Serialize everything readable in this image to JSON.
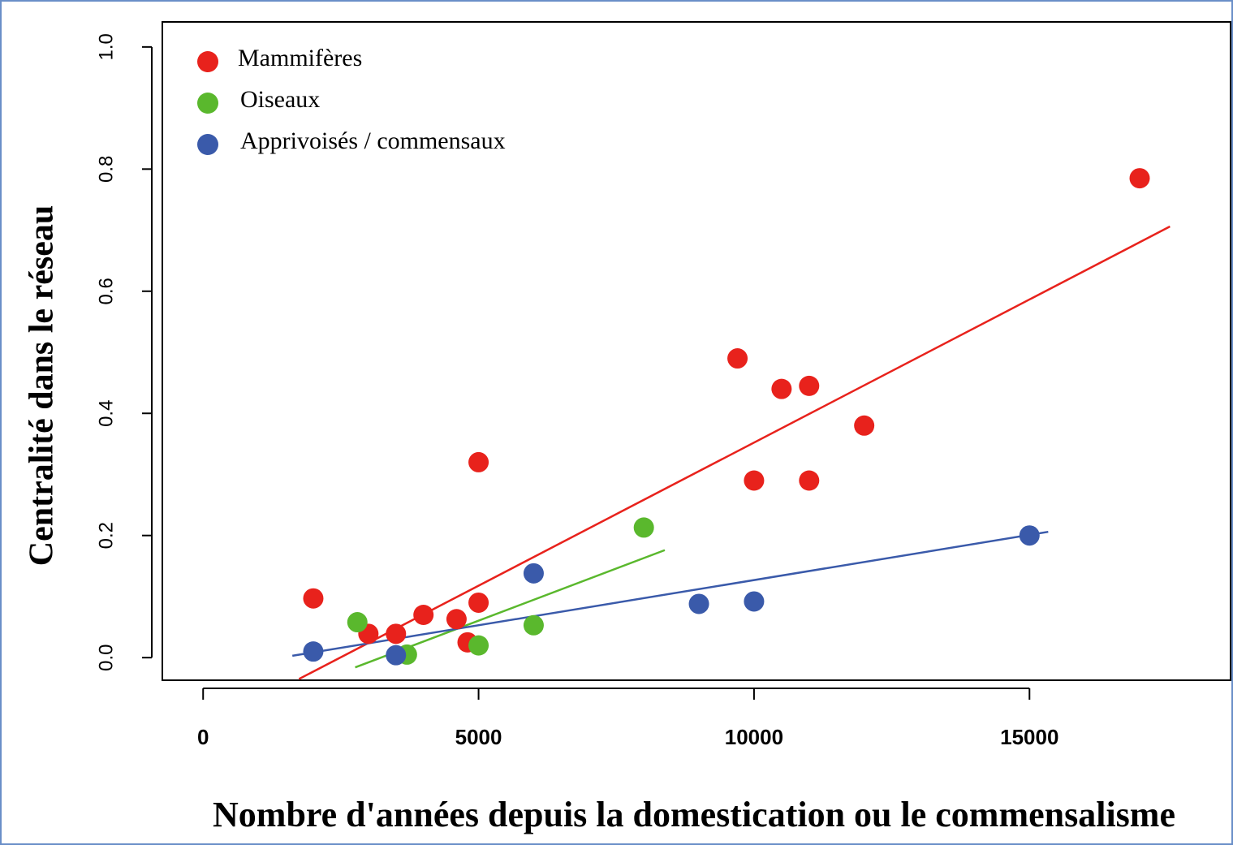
{
  "chart_data": {
    "type": "scatter",
    "x_label": "Nombre d'années depuis la domestication ou le commensalisme",
    "y_label": "Centralité dans le réseau",
    "xlim": [
      -740,
      18650
    ],
    "ylim": [
      -0.037,
      1.041
    ],
    "xticks": [
      0,
      5000,
      10000,
      15000
    ],
    "yticks": [
      {
        "value": 0,
        "label": "0.0"
      },
      0.2,
      0.4,
      0.6,
      0.8,
      {
        "value": 1,
        "label": "1.0"
      }
    ],
    "legend": "top-left",
    "series": [
      {
        "name": "Mammifères",
        "color": "#e8221c",
        "x": [
          2000,
          3000,
          3500,
          4000,
          4600,
          5000,
          4800,
          5000,
          9700,
          10500,
          11000,
          12000,
          10000,
          11000,
          17000
        ],
        "values": [
          0.097,
          0.039,
          0.039,
          0.07,
          0.063,
          0.09,
          0.025,
          0.32,
          0.49,
          0.44,
          0.445,
          0.38,
          0.29,
          0.29,
          0.785
        ],
        "trend": {
          "x": [
            1740,
            17550
          ],
          "values": [
            -0.035,
            0.706
          ]
        }
      },
      {
        "name": "Oiseaux",
        "color": "#5ab82d",
        "x": [
          2800,
          3700,
          5000,
          6000,
          8000
        ],
        "values": [
          0.058,
          0.005,
          0.02,
          0.053,
          0.213
        ],
        "trend": {
          "x": [
            2760,
            8380
          ],
          "values": [
            -0.016,
            0.176
          ]
        }
      },
      {
        "name": "Apprivoisés / commensaux",
        "color": "#3a5aaa",
        "x": [
          2000,
          3500,
          6000,
          9000,
          10000,
          15000
        ],
        "values": [
          0.01,
          0.004,
          0.138,
          0.088,
          0.092,
          0.2
        ],
        "trend": {
          "x": [
            1620,
            15340
          ],
          "values": [
            0.003,
            0.206
          ]
        }
      }
    ]
  }
}
